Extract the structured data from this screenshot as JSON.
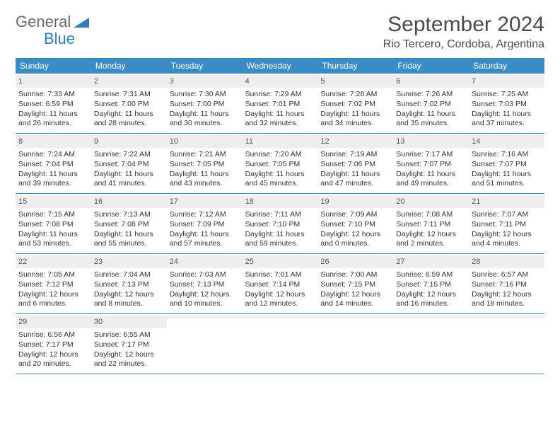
{
  "brand": {
    "part1": "General",
    "part2": "Blue"
  },
  "title": "September 2024",
  "location": "Rio Tercero, Cordoba, Argentina",
  "colors": {
    "header_bg": "#3b8bc5",
    "header_text": "#ffffff",
    "daynum_bg": "#eeeeee",
    "border": "#3b8bc5",
    "text": "#333333",
    "brand_gray": "#6b6b6b",
    "brand_blue": "#2f7bbf"
  },
  "day_names": [
    "Sunday",
    "Monday",
    "Tuesday",
    "Wednesday",
    "Thursday",
    "Friday",
    "Saturday"
  ],
  "weeks": [
    [
      {
        "n": "1",
        "sr": "Sunrise: 7:33 AM",
        "ss": "Sunset: 6:59 PM",
        "dl": "Daylight: 11 hours and 26 minutes."
      },
      {
        "n": "2",
        "sr": "Sunrise: 7:31 AM",
        "ss": "Sunset: 7:00 PM",
        "dl": "Daylight: 11 hours and 28 minutes."
      },
      {
        "n": "3",
        "sr": "Sunrise: 7:30 AM",
        "ss": "Sunset: 7:00 PM",
        "dl": "Daylight: 11 hours and 30 minutes."
      },
      {
        "n": "4",
        "sr": "Sunrise: 7:29 AM",
        "ss": "Sunset: 7:01 PM",
        "dl": "Daylight: 11 hours and 32 minutes."
      },
      {
        "n": "5",
        "sr": "Sunrise: 7:28 AM",
        "ss": "Sunset: 7:02 PM",
        "dl": "Daylight: 11 hours and 34 minutes."
      },
      {
        "n": "6",
        "sr": "Sunrise: 7:26 AM",
        "ss": "Sunset: 7:02 PM",
        "dl": "Daylight: 11 hours and 35 minutes."
      },
      {
        "n": "7",
        "sr": "Sunrise: 7:25 AM",
        "ss": "Sunset: 7:03 PM",
        "dl": "Daylight: 11 hours and 37 minutes."
      }
    ],
    [
      {
        "n": "8",
        "sr": "Sunrise: 7:24 AM",
        "ss": "Sunset: 7:04 PM",
        "dl": "Daylight: 11 hours and 39 minutes."
      },
      {
        "n": "9",
        "sr": "Sunrise: 7:22 AM",
        "ss": "Sunset: 7:04 PM",
        "dl": "Daylight: 11 hours and 41 minutes."
      },
      {
        "n": "10",
        "sr": "Sunrise: 7:21 AM",
        "ss": "Sunset: 7:05 PM",
        "dl": "Daylight: 11 hours and 43 minutes."
      },
      {
        "n": "11",
        "sr": "Sunrise: 7:20 AM",
        "ss": "Sunset: 7:05 PM",
        "dl": "Daylight: 11 hours and 45 minutes."
      },
      {
        "n": "12",
        "sr": "Sunrise: 7:19 AM",
        "ss": "Sunset: 7:06 PM",
        "dl": "Daylight: 11 hours and 47 minutes."
      },
      {
        "n": "13",
        "sr": "Sunrise: 7:17 AM",
        "ss": "Sunset: 7:07 PM",
        "dl": "Daylight: 11 hours and 49 minutes."
      },
      {
        "n": "14",
        "sr": "Sunrise: 7:16 AM",
        "ss": "Sunset: 7:07 PM",
        "dl": "Daylight: 11 hours and 51 minutes."
      }
    ],
    [
      {
        "n": "15",
        "sr": "Sunrise: 7:15 AM",
        "ss": "Sunset: 7:08 PM",
        "dl": "Daylight: 11 hours and 53 minutes."
      },
      {
        "n": "16",
        "sr": "Sunrise: 7:13 AM",
        "ss": "Sunset: 7:08 PM",
        "dl": "Daylight: 11 hours and 55 minutes."
      },
      {
        "n": "17",
        "sr": "Sunrise: 7:12 AM",
        "ss": "Sunset: 7:09 PM",
        "dl": "Daylight: 11 hours and 57 minutes."
      },
      {
        "n": "18",
        "sr": "Sunrise: 7:11 AM",
        "ss": "Sunset: 7:10 PM",
        "dl": "Daylight: 11 hours and 59 minutes."
      },
      {
        "n": "19",
        "sr": "Sunrise: 7:09 AM",
        "ss": "Sunset: 7:10 PM",
        "dl": "Daylight: 12 hours and 0 minutes."
      },
      {
        "n": "20",
        "sr": "Sunrise: 7:08 AM",
        "ss": "Sunset: 7:11 PM",
        "dl": "Daylight: 12 hours and 2 minutes."
      },
      {
        "n": "21",
        "sr": "Sunrise: 7:07 AM",
        "ss": "Sunset: 7:11 PM",
        "dl": "Daylight: 12 hours and 4 minutes."
      }
    ],
    [
      {
        "n": "22",
        "sr": "Sunrise: 7:05 AM",
        "ss": "Sunset: 7:12 PM",
        "dl": "Daylight: 12 hours and 6 minutes."
      },
      {
        "n": "23",
        "sr": "Sunrise: 7:04 AM",
        "ss": "Sunset: 7:13 PM",
        "dl": "Daylight: 12 hours and 8 minutes."
      },
      {
        "n": "24",
        "sr": "Sunrise: 7:03 AM",
        "ss": "Sunset: 7:13 PM",
        "dl": "Daylight: 12 hours and 10 minutes."
      },
      {
        "n": "25",
        "sr": "Sunrise: 7:01 AM",
        "ss": "Sunset: 7:14 PM",
        "dl": "Daylight: 12 hours and 12 minutes."
      },
      {
        "n": "26",
        "sr": "Sunrise: 7:00 AM",
        "ss": "Sunset: 7:15 PM",
        "dl": "Daylight: 12 hours and 14 minutes."
      },
      {
        "n": "27",
        "sr": "Sunrise: 6:59 AM",
        "ss": "Sunset: 7:15 PM",
        "dl": "Daylight: 12 hours and 16 minutes."
      },
      {
        "n": "28",
        "sr": "Sunrise: 6:57 AM",
        "ss": "Sunset: 7:16 PM",
        "dl": "Daylight: 12 hours and 18 minutes."
      }
    ],
    [
      {
        "n": "29",
        "sr": "Sunrise: 6:56 AM",
        "ss": "Sunset: 7:17 PM",
        "dl": "Daylight: 12 hours and 20 minutes."
      },
      {
        "n": "30",
        "sr": "Sunrise: 6:55 AM",
        "ss": "Sunset: 7:17 PM",
        "dl": "Daylight: 12 hours and 22 minutes."
      },
      {
        "n": "",
        "sr": "",
        "ss": "",
        "dl": ""
      },
      {
        "n": "",
        "sr": "",
        "ss": "",
        "dl": ""
      },
      {
        "n": "",
        "sr": "",
        "ss": "",
        "dl": ""
      },
      {
        "n": "",
        "sr": "",
        "ss": "",
        "dl": ""
      },
      {
        "n": "",
        "sr": "",
        "ss": "",
        "dl": ""
      }
    ]
  ]
}
